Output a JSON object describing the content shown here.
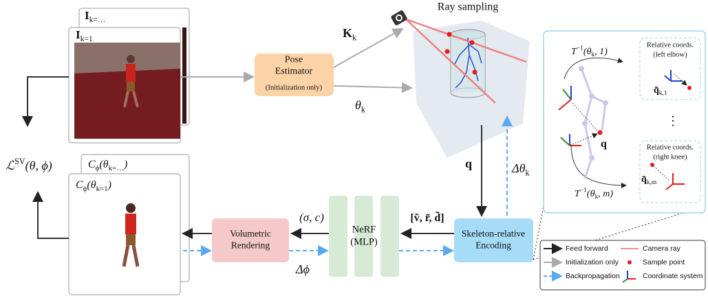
{
  "images": {
    "top_back": [
      {
        "t": "I",
        "s": "b"
      },
      {
        "t": "k=…",
        "s": "sub"
      }
    ],
    "top_front": [
      {
        "t": "I",
        "s": "b"
      },
      {
        "t": "k=1",
        "s": "sub"
      }
    ],
    "render_back": [
      {
        "t": "C"
      },
      {
        "t": "ϕ",
        "s": "sub"
      },
      {
        "t": "(θ"
      },
      {
        "t": "k=…",
        "s": "sub"
      },
      {
        "t": ")"
      }
    ],
    "render_front": [
      {
        "t": "C"
      },
      {
        "t": "ϕ",
        "s": "sub"
      },
      {
        "t": "(θ"
      },
      {
        "t": "k=1",
        "s": "sub"
      },
      {
        "t": ")"
      }
    ]
  },
  "loss": [
    {
      "t": "ℒ"
    },
    {
      "t": "SV",
      "s": "sup"
    },
    {
      "t": "(θ, ϕ)"
    }
  ],
  "ray_sampling": "Ray sampling",
  "pose_estimator": {
    "lines": [
      "Pose",
      "Estimator"
    ],
    "note": "(Initialization only)"
  },
  "edges": {
    "K": [
      {
        "t": "K",
        "s": "b"
      },
      {
        "t": "k",
        "s": "sub"
      }
    ],
    "theta": [
      {
        "t": "θ"
      },
      {
        "t": "k",
        "s": "sub"
      }
    ],
    "q": [
      {
        "t": "q",
        "s": "b"
      }
    ],
    "dtheta": [
      {
        "t": "Δθ"
      },
      {
        "t": "k",
        "s": "sub"
      }
    ],
    "sigma_c": [
      {
        "t": "(σ, c)"
      }
    ],
    "vrd": [
      {
        "t": "[ṽ, r̃, d̃]",
        "s": "b"
      }
    ],
    "dphi": [
      {
        "t": "Δϕ"
      }
    ]
  },
  "blocks": {
    "encoding": [
      "Skeleton-relative",
      "Encoding"
    ],
    "nerf": [
      "NeRF",
      "(MLP)"
    ],
    "rendering": [
      "Volumetric",
      "Rendering"
    ]
  },
  "zoom": {
    "t1": [
      {
        "t": "T"
      },
      {
        "t": "−1",
        "s": "sup"
      },
      {
        "t": "(θ"
      },
      {
        "t": "k",
        "s": "sub"
      },
      {
        "t": ", 1)"
      }
    ],
    "tm": [
      {
        "t": "T"
      },
      {
        "t": "−1",
        "s": "sup"
      },
      {
        "t": "(θ"
      },
      {
        "t": "k",
        "s": "sub"
      },
      {
        "t": ", m)"
      }
    ],
    "q": [
      {
        "t": "q",
        "s": "b"
      }
    ],
    "ellipsis": "⋮",
    "box1": {
      "lines": [
        "Relative coords.",
        "(left elbow)"
      ],
      "label": [
        {
          "t": "q̃",
          "s": "b"
        },
        {
          "t": "k,1",
          "s": "sub"
        }
      ]
    },
    "box2": {
      "lines": [
        "Relative coords.",
        "(right knee)"
      ],
      "label": [
        {
          "t": "q̃",
          "s": "b"
        },
        {
          "t": "k,m",
          "s": "sub"
        }
      ]
    }
  },
  "legend": [
    "Feed forward",
    "Initialization only",
    "Backpropagation",
    "Camera ray",
    "Sample point",
    "Coordinate system"
  ]
}
